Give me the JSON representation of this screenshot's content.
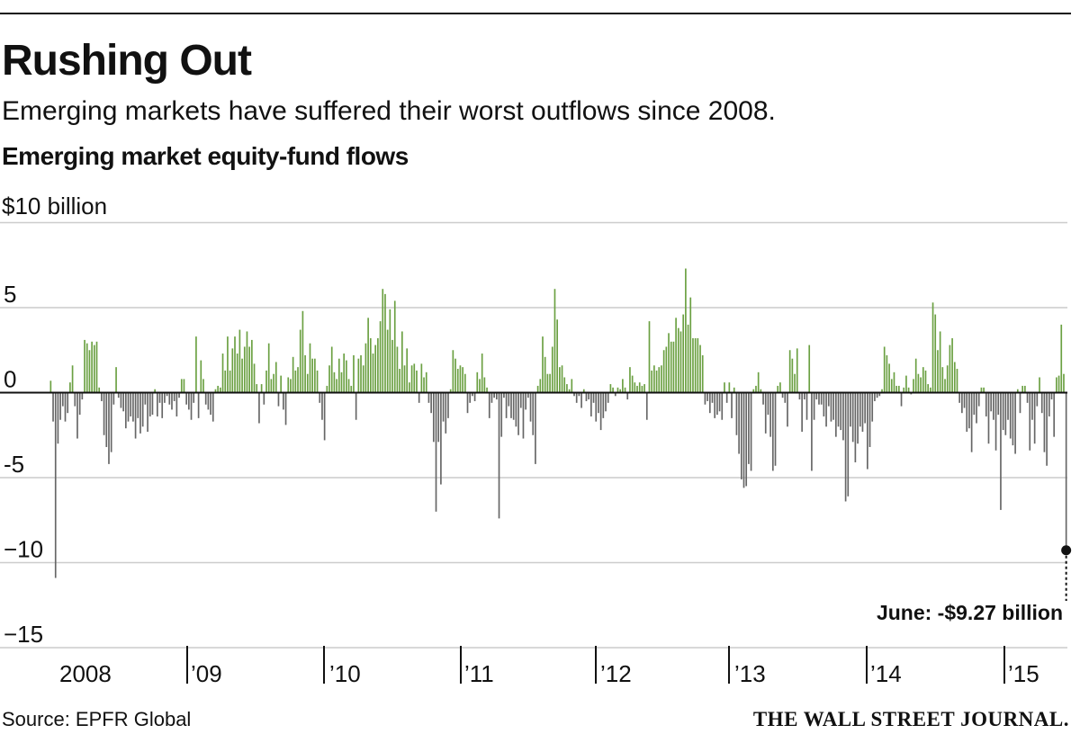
{
  "header": {
    "headline": "Rushing Out",
    "dek": "Emerging markets have suffered their worst outflows since 2008."
  },
  "footer": {
    "source": "Source: EPFR Global",
    "logo": "THE WALL STREET JOURNAL."
  },
  "colors": {
    "positive": "#6ba042",
    "negative": "#666666",
    "grid": "#cccccc",
    "axis": "#111111"
  },
  "chart_data": {
    "type": "bar",
    "title": "Emerging market equity-fund flows",
    "unit_label": "$10 billion",
    "ylim": [
      -15,
      10
    ],
    "y_ticks": [
      {
        "value": 5,
        "label": "5"
      },
      {
        "value": 0,
        "label": "0"
      },
      {
        "value": -5,
        "label": "-5"
      },
      {
        "value": -10,
        "label": "−10"
      },
      {
        "value": -15,
        "label": "−15"
      }
    ],
    "grid": true,
    "x_ticks": [
      "2008",
      "’09",
      "’10",
      "’11",
      "’12",
      "’13",
      "’14",
      "’15"
    ],
    "annotation": {
      "label": "June: -$9.27 billion",
      "value": -9.27
    },
    "series": [
      {
        "year": "2008",
        "values": [
          0.7,
          -1.7,
          -10.9,
          -3.0,
          -1.6,
          -0.8,
          -1.7,
          -1.2,
          0.6,
          1.6,
          -0.8,
          -2.7,
          -1.3,
          -0.4,
          3.1,
          2.9,
          2.5,
          3.0,
          2.8,
          3.0,
          0.3,
          -0.5,
          -2.5,
          -3.2,
          -4.2,
          -3.5,
          -0.7,
          1.5,
          -0.3,
          -0.9,
          -1.1,
          -2.1,
          -1.7,
          -1.4,
          -1.7,
          -2.7,
          -1.5,
          -2.4,
          -2.0,
          -0.7,
          -2.3,
          -1.4,
          -1.3,
          0.2,
          -1.4,
          -0.6,
          -1.5,
          -0.6,
          -0.2
        ]
      },
      {
        "year": "’09",
        "values": [
          -0.7,
          -1.0,
          -0.5,
          -1.4,
          -0.3,
          0.8,
          0.8,
          -0.7,
          -1.0,
          -1.6,
          -0.6,
          3.3,
          -1.5,
          1.9,
          0.8,
          -0.7,
          -1.0,
          -1.3,
          -1.7,
          0.2,
          0.4,
          0.3,
          2.3,
          1.3,
          3.3,
          1.3,
          2.6,
          3.3,
          2.3,
          3.7,
          2.0,
          2.7,
          3.6,
          2.7,
          3.1,
          1.7,
          0.5,
          -1.8,
          0.5,
          -0.7,
          1.3,
          2.9
        ]
      },
      {
        "year": "’10",
        "values": [
          0.8,
          1.1,
          1.8,
          -0.8,
          1.0,
          -1.0,
          -1.9,
          0.9,
          0.8,
          2.1,
          1.3,
          1.5,
          3.7,
          4.8,
          2.2,
          1.1,
          2.9,
          2.0,
          2.0,
          1.3,
          -0.6,
          -1.6,
          -2.8,
          0.4,
          1.6,
          2.7,
          1.2,
          0.8,
          2.0,
          1.2,
          2.3,
          1.9,
          0.8,
          0.4,
          2.2,
          -1.6,
          2.0,
          2.2,
          1.6,
          2.9,
          4.4,
          3.2,
          2.3,
          2.8,
          3.2,
          4.2,
          6.1,
          5.8,
          3.7,
          4.9,
          3.1,
          5.4,
          2.7
        ]
      },
      {
        "year": "’11",
        "values": [
          1.4,
          3.6,
          1.6,
          2.6,
          0.6,
          1.6,
          1.7,
          1.3,
          -0.6,
          1.7,
          0.9,
          1.2,
          -0.6,
          -1.2,
          -2.9,
          -7.0,
          -2.9,
          -5.4,
          -1.7,
          -2.4,
          -1.5,
          0.2,
          2.5,
          2.0,
          1.4,
          1.6,
          1.5,
          1.1,
          -1.2,
          -0.6,
          -0.2,
          -0.5,
          1.2,
          0.8,
          2.3,
          0.9,
          0.3,
          -1.5,
          -0.6,
          -0.3,
          -0.4,
          -7.4,
          -2.6,
          -0.3,
          -1.5,
          -0.8,
          -1.5,
          -1.6,
          -2.0,
          -2.5
        ]
      },
      {
        "year": "’12",
        "values": [
          -0.9,
          -2.7,
          -1.0,
          -0.3,
          -1.7,
          -2.5,
          -4.2,
          0.4,
          0.8,
          3.3,
          2.1,
          1.1,
          1.1,
          2.7,
          6.1,
          4.3,
          1.5,
          1.6,
          0.9,
          0.5,
          0.2,
          0.8,
          -0.2,
          -0.6,
          -0.2,
          -0.9,
          0.2,
          -0.5,
          -0.4,
          -1.4,
          -0.6,
          -1.7,
          -1.2,
          -2.2,
          -1.5,
          -1.1,
          -0.6,
          0.5,
          0.3,
          -0.2,
          0.3,
          0.2
        ]
      },
      {
        "year": "’13",
        "values": [
          0.8,
          0.3,
          -0.4,
          1.5,
          1.0,
          0.6,
          0.4,
          0.6,
          0.4,
          0.5,
          -1.6,
          4.2,
          1.3,
          1.6,
          1.3,
          1.5,
          1.6,
          2.5,
          2.7,
          3.5,
          3.0,
          3.0,
          4.4,
          3.8,
          3.6,
          4.6,
          7.3,
          4.0,
          5.6,
          3.2,
          3.2,
          3.2,
          2.8,
          2.2
        ]
      },
      {
        "year": "’13b",
        "values": [
          -0.7,
          -0.5,
          -1.2,
          -0.6,
          -1.5,
          -1.3,
          -1.1,
          -1.6,
          0.6,
          -0.6,
          0.6,
          -1.5,
          0.3,
          -2.5,
          -3.6,
          -5.1,
          -5.6,
          -5.5,
          -4.2,
          -4.6,
          0.2,
          0.4,
          1.2,
          0.2,
          -0.7,
          -2.4,
          -1.3,
          -2.6,
          -4.6,
          -4.3,
          0.4,
          0.6,
          -0.3,
          -0.6,
          -2.0,
          2.5,
          2.0,
          1.1,
          2.6,
          -0.4,
          -2.3,
          -0.4,
          -1.6,
          2.8
        ]
      },
      {
        "year": "’14",
        "values": [
          -4.6,
          -1.6,
          -0.4,
          -0.7,
          -0.7,
          -1.4,
          -2.0,
          -0.8,
          -1.7,
          -1.6,
          -2.6,
          -2.0,
          -2.2,
          -2.8,
          -6.4,
          -6.1,
          -2.0,
          -2.9,
          -4.1,
          -3.0,
          -2.0,
          -2.3,
          -1.8,
          -4.5,
          -3.2,
          -1.7,
          -0.5,
          -0.3,
          -0.2,
          0.2,
          2.7,
          2.2,
          1.7,
          0.8,
          1.2,
          0.4,
          0.4,
          -0.8,
          0.3,
          1.0,
          0.3,
          -0.1,
          0.8,
          2.0,
          1.1,
          0.9,
          1.5,
          1.3,
          0.5,
          0.3,
          5.3,
          4.6,
          2.5,
          3.6,
          1.5,
          0.8,
          1.6,
          2.8,
          3.2,
          1.8,
          1.4
        ]
      },
      {
        "year": "’15",
        "values": [
          -0.6,
          -1.2,
          -0.9,
          -2.3,
          -2.1,
          -3.5,
          -1.3,
          -1.8,
          -0.8,
          0.3,
          0.3,
          -1.4,
          -3.0,
          -1.1,
          -1.6,
          -3.4,
          -1.3,
          -6.9,
          -2.2,
          -2.5,
          -1.6,
          -2.7,
          -3.1,
          -3.6,
          0.2,
          -1.2,
          0.4,
          0.4,
          -0.6,
          -3.4,
          -1.6,
          -3.0,
          -0.8,
          0.9,
          -1.2,
          -3.5,
          -4.3,
          -1.4,
          -0.4,
          -2.6,
          0.9,
          1.0,
          4.0,
          1.1,
          -9.27
        ]
      }
    ]
  }
}
